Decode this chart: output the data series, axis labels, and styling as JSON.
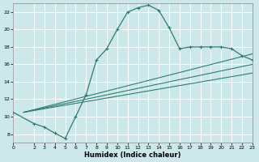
{
  "xlabel": "Humidex (Indice chaleur)",
  "bg_color": "#cce8ea",
  "grid_color": "#ffffff",
  "line_color": "#2e7d6e",
  "xlim": [
    0,
    23
  ],
  "ylim": [
    7,
    23
  ],
  "yticks": [
    8,
    10,
    12,
    14,
    16,
    18,
    20,
    22
  ],
  "xticks": [
    0,
    2,
    3,
    4,
    5,
    6,
    7,
    8,
    9,
    10,
    11,
    12,
    13,
    14,
    15,
    16,
    17,
    18,
    19,
    20,
    21,
    22,
    23
  ],
  "curve_x": [
    0,
    2,
    3,
    4,
    5,
    6,
    7,
    8,
    9,
    10,
    11,
    12,
    13,
    14,
    15,
    16,
    17,
    18,
    19,
    20,
    21,
    22,
    23
  ],
  "curve_y": [
    10.5,
    9.2,
    8.8,
    8.1,
    7.5,
    10.0,
    12.5,
    16.5,
    17.8,
    20.0,
    22.0,
    22.5,
    22.8,
    22.2,
    20.2,
    17.8,
    18.0,
    18.0,
    18.0,
    18.0,
    17.8,
    17.0,
    16.5
  ],
  "line2_x": [
    1,
    23
  ],
  "line2_y": [
    10.5,
    17.2
  ],
  "line3_x": [
    1,
    23
  ],
  "line3_y": [
    10.5,
    16.0
  ],
  "line4_x": [
    1,
    23
  ],
  "line4_y": [
    10.5,
    15.0
  ]
}
